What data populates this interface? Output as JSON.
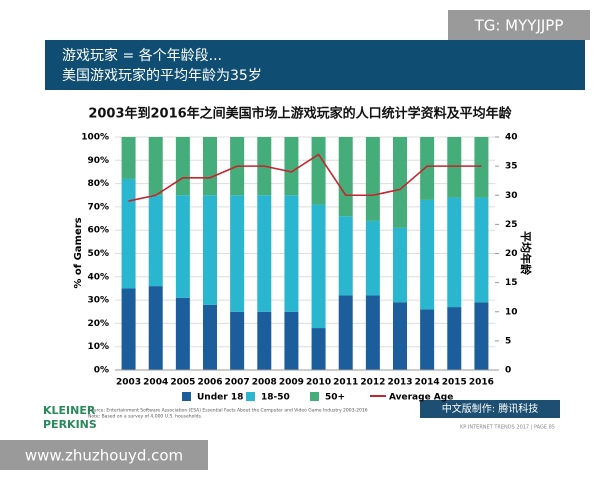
{
  "header": {
    "line1": "游戏玩家 = 各个年龄段...",
    "line2": "美国游戏玩家的平均年龄为35岁"
  },
  "badge": "TG: MYYJJPP",
  "logo": {
    "line1": "KLEINER",
    "line2": "PERKINS"
  },
  "source": {
    "line1": "Source: Entertainment Software Association (ESA) Essential Facts About the Computer and Video Game Industry 2003-2016",
    "line2": "Note: Based on a survey of 4,000 U.S. households."
  },
  "credit": "中文版制作: 腾讯科技",
  "footer": "KP INTERNET TRENDS 2017 | PAGE 85",
  "watermark": "www.zhuzhouyd.com",
  "chart_data": {
    "type": "stacked-bar-line",
    "title": "2003年到2016年之间美国市场上游戏玩家的人口统计学资料及平均年龄",
    "y_label": "% of Gamers",
    "y2_label": "平均年龄",
    "categories": [
      "2003",
      "2004",
      "2005",
      "2006",
      "2007",
      "2008",
      "2009",
      "2010",
      "2011",
      "2012",
      "2013",
      "2014",
      "2015",
      "2016"
    ],
    "series": [
      {
        "name": "Under 18",
        "color": "#1b5e9b",
        "values": [
          35,
          36,
          31,
          28,
          25,
          25,
          25,
          18,
          32,
          32,
          29,
          26,
          27,
          29
        ]
      },
      {
        "name": "18-50",
        "color": "#2bb6cf",
        "values": [
          47,
          39,
          44,
          47,
          50,
          50,
          50,
          53,
          34,
          32,
          32,
          47,
          47,
          45
        ]
      },
      {
        "name": "50+",
        "color": "#45ad7a",
        "values": [
          18,
          25,
          25,
          25,
          25,
          25,
          25,
          29,
          34,
          36,
          39,
          27,
          26,
          26
        ]
      },
      {
        "name": "Average Age",
        "color": "#c2262e",
        "axis": "y2",
        "values": [
          29,
          30,
          33,
          33,
          35,
          35,
          34,
          37,
          30,
          30,
          31,
          35,
          35,
          35
        ]
      }
    ],
    "ylim": [
      0,
      100
    ],
    "yticks": [
      {
        "value": 0,
        "label": "0%"
      },
      {
        "value": 10,
        "label": "10%"
      },
      {
        "value": 20,
        "label": "20%"
      },
      {
        "value": 30,
        "label": "30%"
      },
      {
        "value": 40,
        "label": "40%"
      },
      {
        "value": 50,
        "label": "50%"
      },
      {
        "value": 60,
        "label": "60%"
      },
      {
        "value": 70,
        "label": "70%"
      },
      {
        "value": 80,
        "label": "80%"
      },
      {
        "value": 90,
        "label": "90%"
      },
      {
        "value": 100,
        "label": "100%"
      }
    ],
    "y2lim": [
      0,
      40
    ],
    "y2ticks": [
      0,
      5,
      10,
      15,
      20,
      25,
      30,
      35,
      40
    ],
    "grid": true,
    "legend": "bottom"
  }
}
